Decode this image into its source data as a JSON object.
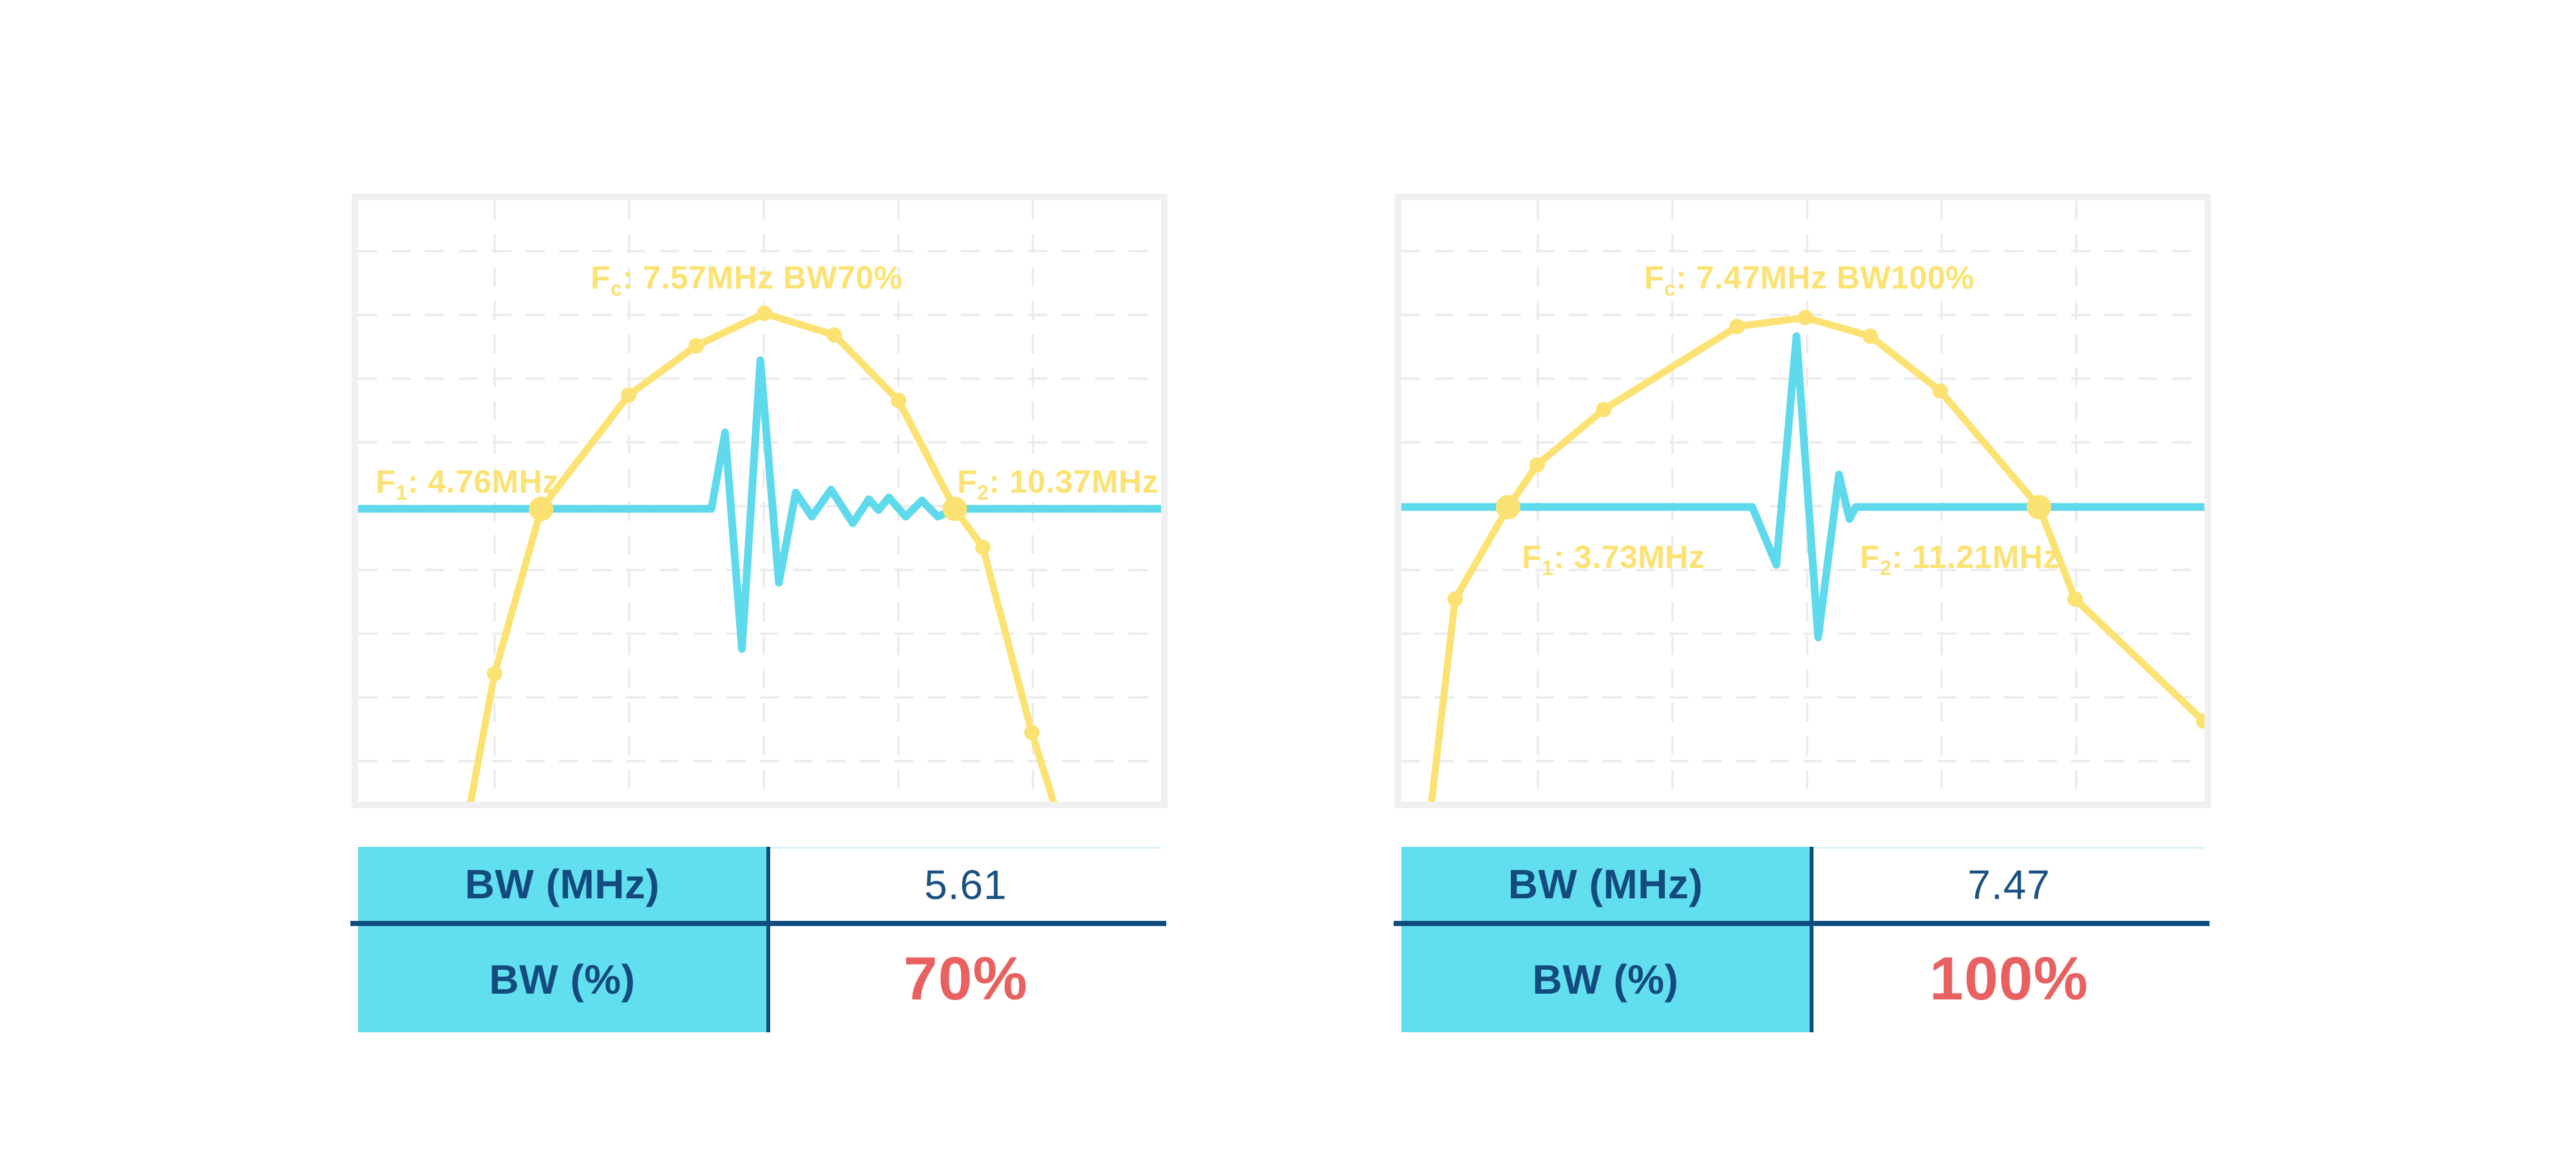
{
  "colors": {
    "spectrum_yellow": "#FBE273",
    "pulse_cyan": "#5FD9EC",
    "table_header_cyan": "#62DFEF",
    "navy_text": "#134B7E",
    "navy_line": "#0E4C7F",
    "red_value": "#E96060",
    "plot_border_gray": "#F0F0F0",
    "grid_gray": "#EBEBEB"
  },
  "chart_data": [
    {
      "type": "line",
      "panel": "left",
      "title": "Fc: 7.57MHz BW70%",
      "fc_mhz": 7.57,
      "f1_mhz": 4.76,
      "f2_mhz": 10.37,
      "bw_mhz": 5.61,
      "bw_percent": 70,
      "axes": "none",
      "grid": "dashed",
      "legend": "none",
      "labels": {
        "fc": {
          "prefix": "F",
          "sub": "c",
          "rest": ": 7.57MHz BW70%"
        },
        "f1": {
          "prefix": "F",
          "sub": "1",
          "rest": ": 4.76MHz"
        },
        "f2": {
          "prefix": "F",
          "sub": "2",
          "rest": ": 10.37MHz"
        }
      },
      "series": [
        {
          "name": "spectrum",
          "color": "#FBE273",
          "marker_color": "#FBE273",
          "points_frac": [
            [
              0.136,
              1.03,
              0
            ],
            [
              0.17,
              0.787,
              1
            ],
            [
              0.228,
              0.513,
              2
            ],
            [
              0.337,
              0.324,
              1
            ],
            [
              0.421,
              0.242,
              1
            ],
            [
              0.506,
              0.188,
              1
            ],
            [
              0.593,
              0.224,
              1
            ],
            [
              0.673,
              0.333,
              1
            ],
            [
              0.743,
              0.513,
              2
            ],
            [
              0.778,
              0.577,
              1
            ],
            [
              0.839,
              0.885,
              1
            ],
            [
              0.873,
              1.03,
              0
            ]
          ]
        },
        {
          "name": "pulse",
          "color": "#5FD9EC",
          "points_frac": [
            [
              0.0,
              0.513
            ],
            [
              0.44,
              0.513
            ],
            [
              0.457,
              0.386
            ],
            [
              0.478,
              0.746
            ],
            [
              0.501,
              0.266
            ],
            [
              0.524,
              0.636
            ],
            [
              0.545,
              0.486
            ],
            [
              0.565,
              0.526
            ],
            [
              0.589,
              0.481
            ],
            [
              0.616,
              0.537
            ],
            [
              0.636,
              0.497
            ],
            [
              0.648,
              0.515
            ],
            [
              0.661,
              0.494
            ],
            [
              0.682,
              0.526
            ],
            [
              0.702,
              0.499
            ],
            [
              0.722,
              0.526
            ],
            [
              0.743,
              0.513
            ],
            [
              1.0,
              0.513
            ]
          ]
        }
      ],
      "table": {
        "rows": [
          {
            "label": "BW (MHz)",
            "value": "5.61"
          },
          {
            "label": "BW (%)",
            "value": "70%"
          }
        ]
      }
    },
    {
      "type": "line",
      "panel": "right",
      "title": "Fc: 7.47MHz BW100%",
      "fc_mhz": 7.47,
      "f1_mhz": 3.73,
      "f2_mhz": 11.21,
      "bw_mhz": 7.47,
      "bw_percent": 100,
      "axes": "none",
      "grid": "dashed",
      "legend": "none",
      "labels": {
        "fc": {
          "prefix": "F",
          "sub": "c",
          "rest": ": 7.47MHz BW100%"
        },
        "f1": {
          "prefix": "F",
          "sub": "1",
          "rest": ": 3.73MHz"
        },
        "f2": {
          "prefix": "F",
          "sub": "2",
          "rest": ": 11.21MHz"
        }
      },
      "series": [
        {
          "name": "spectrum",
          "color": "#FBE273",
          "marker_color": "#FBE273",
          "points_frac": [
            [
              0.035,
              1.03,
              0
            ],
            [
              0.067,
              0.663,
              1
            ],
            [
              0.133,
              0.51,
              2
            ],
            [
              0.169,
              0.44,
              1
            ],
            [
              0.252,
              0.348,
              1
            ],
            [
              0.418,
              0.21,
              1
            ],
            [
              0.503,
              0.195,
              1
            ],
            [
              0.584,
              0.226,
              1
            ],
            [
              0.671,
              0.317,
              1
            ],
            [
              0.794,
              0.51,
              2
            ],
            [
              0.839,
              0.663,
              1
            ],
            [
              0.999,
              0.866,
              1
            ]
          ]
        },
        {
          "name": "pulse",
          "color": "#5FD9EC",
          "points_frac": [
            [
              0.0,
              0.51
            ],
            [
              0.437,
              0.51
            ],
            [
              0.467,
              0.606
            ],
            [
              0.492,
              0.226
            ],
            [
              0.519,
              0.727
            ],
            [
              0.545,
              0.456
            ],
            [
              0.558,
              0.53
            ],
            [
              0.566,
              0.51
            ],
            [
              1.0,
              0.51
            ]
          ]
        }
      ],
      "table": {
        "rows": [
          {
            "label": "BW (MHz)",
            "value": "7.47"
          },
          {
            "label": "BW (%)",
            "value": "100%"
          }
        ]
      }
    }
  ]
}
